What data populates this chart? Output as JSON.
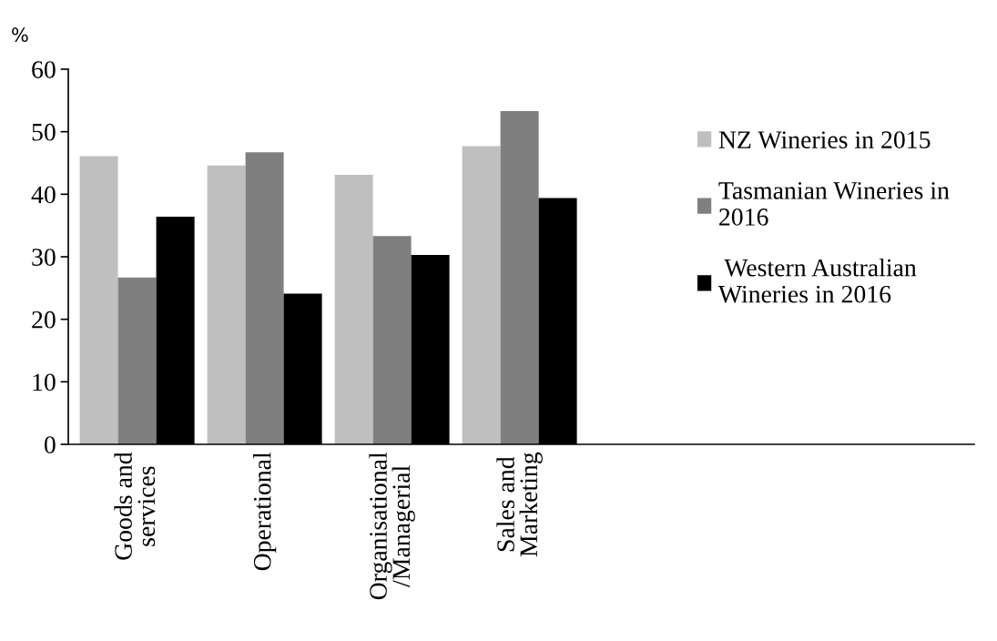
{
  "chart_data": {
    "type": "bar",
    "ylabel": "%",
    "categories": [
      "Goods and\nservices",
      "Operational",
      "Organisational\n/Managerial",
      "Sales and\nMarketing"
    ],
    "series": [
      {
        "name": "NZ Wineries in 2015",
        "color": "#bfbfbf",
        "values": [
          46.1,
          44.6,
          43.1,
          47.7
        ]
      },
      {
        "name": "Tasmanian Wineries in\n2016",
        "color": "#7f7f7f",
        "values": [
          26.7,
          46.7,
          33.3,
          53.3
        ]
      },
      {
        "name": " Western Australian\nWineries in 2016",
        "color": "#000000",
        "values": [
          36.4,
          24.1,
          30.3,
          39.4
        ]
      }
    ],
    "ylim": [
      0,
      60
    ],
    "yticks": [
      0,
      10,
      20,
      30,
      40,
      50,
      60
    ],
    "grid": false,
    "legend": "right"
  }
}
